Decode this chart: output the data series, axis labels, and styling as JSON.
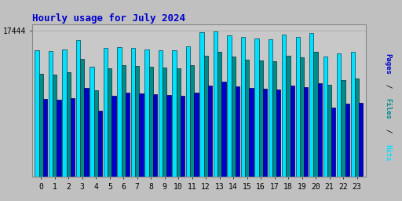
{
  "title": "Hourly usage for July 2024",
  "hours": [
    0,
    1,
    2,
    3,
    4,
    5,
    6,
    7,
    8,
    9,
    10,
    11,
    12,
    13,
    14,
    15,
    16,
    17,
    18,
    19,
    20,
    21,
    22,
    23
  ],
  "hits": [
    15100,
    15000,
    15200,
    16300,
    13100,
    15400,
    15500,
    15400,
    15200,
    15100,
    15100,
    15600,
    17200,
    17350,
    16900,
    16700,
    16500,
    16400,
    17000,
    16700,
    17150,
    14300,
    14700,
    14900
  ],
  "files": [
    12300,
    12200,
    12500,
    14100,
    10300,
    12900,
    13300,
    13200,
    13100,
    13000,
    12900,
    13300,
    14400,
    14900,
    14300,
    14000,
    13900,
    13800,
    14400,
    14200,
    14900,
    11000,
    11500,
    11700
  ],
  "pages": [
    9300,
    9200,
    9400,
    10600,
    7900,
    9700,
    10000,
    9900,
    9850,
    9800,
    9700,
    10000,
    10900,
    11300,
    10800,
    10600,
    10500,
    10400,
    10900,
    10700,
    11200,
    8300,
    8700,
    8800
  ],
  "color_hits": "#00e0ff",
  "color_files": "#008b8b",
  "color_pages": "#0000cc",
  "bg_color": "#c0c0c0",
  "plot_bg": "#c8c8c8",
  "title_color": "#0000cc",
  "color_pages_label": "#0000cc",
  "color_files_label": "#008b8b",
  "color_hits_label": "#00e0ff",
  "ytick_val": 17444,
  "ylim_max": 18200,
  "bar_width": 0.3,
  "tick_label_size": 7,
  "title_size": 9
}
